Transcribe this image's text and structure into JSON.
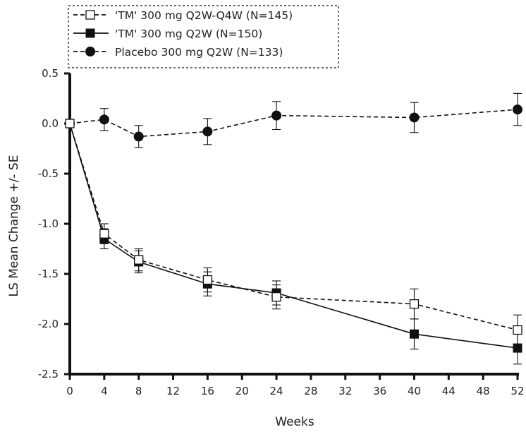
{
  "chart_data": {
    "type": "line",
    "xlabel": "Weeks",
    "ylabel": "LS Mean Change +/- SE",
    "xlim": [
      0,
      52
    ],
    "ylim": [
      -2.5,
      0.5
    ],
    "x_ticks": [
      "0",
      "4",
      "8",
      "12",
      "16",
      "20",
      "24",
      "28",
      "32",
      "36",
      "40",
      "44",
      "48",
      "52"
    ],
    "y_ticks": [
      "0.5",
      "0.0",
      "-0.5",
      "-1.0",
      "-1.5",
      "-2.0",
      "-2.5"
    ],
    "grid": false,
    "legend_position": "top-left",
    "series": [
      {
        "name": "'TM' 300 mg Q2W-Q4W (N=145)",
        "marker": "open-square",
        "line_style": "dashed",
        "color": "#111111",
        "x": [
          0,
          4,
          8,
          16,
          24,
          40,
          52
        ],
        "values": [
          0.0,
          -1.1,
          -1.36,
          -1.56,
          -1.73,
          -1.8,
          -2.06
        ],
        "se": [
          0.0,
          0.1,
          0.11,
          0.12,
          0.12,
          0.15,
          0.15
        ]
      },
      {
        "name": "'TM' 300 mg Q2W (N=150)",
        "marker": "filled-square",
        "line_style": "solid",
        "color": "#111111",
        "x": [
          0,
          4,
          8,
          16,
          24,
          40,
          52
        ],
        "values": [
          0.0,
          -1.15,
          -1.38,
          -1.6,
          -1.69,
          -2.1,
          -2.24
        ],
        "se": [
          0.0,
          0.1,
          0.11,
          0.12,
          0.12,
          0.15,
          0.16
        ]
      },
      {
        "name": "Placebo 300 mg Q2W (N=133)",
        "marker": "filled-circle",
        "line_style": "dashed",
        "color": "#111111",
        "x": [
          0,
          4,
          8,
          16,
          24,
          40,
          52
        ],
        "values": [
          0.0,
          0.04,
          -0.13,
          -0.08,
          0.08,
          0.06,
          0.14
        ],
        "se": [
          0.0,
          0.11,
          0.11,
          0.13,
          0.14,
          0.15,
          0.16
        ]
      }
    ]
  }
}
